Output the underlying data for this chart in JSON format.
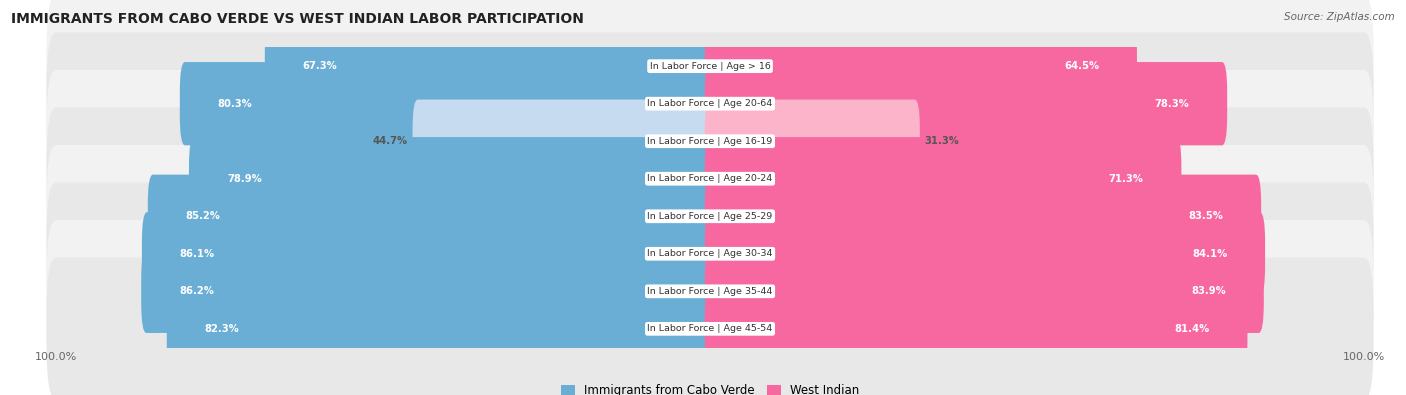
{
  "title": "IMMIGRANTS FROM CABO VERDE VS WEST INDIAN LABOR PARTICIPATION",
  "source": "Source: ZipAtlas.com",
  "categories": [
    "In Labor Force | Age > 16",
    "In Labor Force | Age 20-64",
    "In Labor Force | Age 16-19",
    "In Labor Force | Age 20-24",
    "In Labor Force | Age 25-29",
    "In Labor Force | Age 30-34",
    "In Labor Force | Age 35-44",
    "In Labor Force | Age 45-54"
  ],
  "cabo_verde": [
    67.3,
    80.3,
    44.7,
    78.9,
    85.2,
    86.1,
    86.2,
    82.3
  ],
  "west_indian": [
    64.5,
    78.3,
    31.3,
    71.3,
    83.5,
    84.1,
    83.9,
    81.4
  ],
  "cabo_verde_color": "#6aaed6",
  "cabo_verde_light_color": "#c6dbef",
  "west_indian_color": "#f768a1",
  "west_indian_light_color": "#fbb4c9",
  "row_bg_color_even": "#f2f2f2",
  "row_bg_color_odd": "#e8e8e8",
  "label_color_dark": "#555555",
  "label_color_white": "#ffffff",
  "max_value": 100.0,
  "legend_cabo_label": "Immigrants from Cabo Verde",
  "legend_west_label": "West Indian",
  "light_threshold": 50
}
